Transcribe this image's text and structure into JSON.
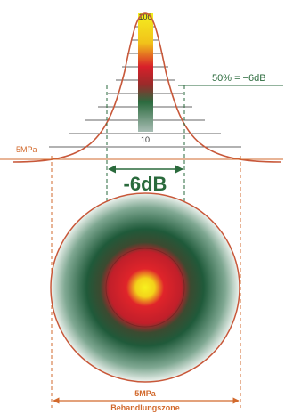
{
  "scale": {
    "top_label": "100",
    "bottom_label": "10"
  },
  "annotations": {
    "half_level": "50% = −6dB",
    "pressure_left": "5MPa",
    "focus_width": "-6dB",
    "zone_pressure": "5MPa",
    "zone_label": "Behandlungszone"
  }
}
